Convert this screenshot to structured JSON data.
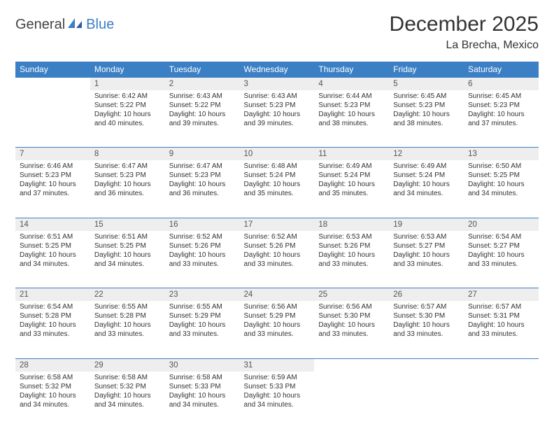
{
  "logo": {
    "part1": "General",
    "part2": "Blue"
  },
  "title": "December 2025",
  "subtitle": "La Brecha, Mexico",
  "colors": {
    "header_bg": "#3b7fc4",
    "header_text": "#ffffff",
    "daynum_bg": "#eeeeee",
    "row_border": "#3b7fc4",
    "text": "#333333"
  },
  "day_names": [
    "Sunday",
    "Monday",
    "Tuesday",
    "Wednesday",
    "Thursday",
    "Friday",
    "Saturday"
  ],
  "weeks": [
    {
      "nums": [
        "",
        "1",
        "2",
        "3",
        "4",
        "5",
        "6"
      ],
      "cells": [
        [],
        [
          "Sunrise: 6:42 AM",
          "Sunset: 5:22 PM",
          "Daylight: 10 hours",
          "and 40 minutes."
        ],
        [
          "Sunrise: 6:43 AM",
          "Sunset: 5:22 PM",
          "Daylight: 10 hours",
          "and 39 minutes."
        ],
        [
          "Sunrise: 6:43 AM",
          "Sunset: 5:23 PM",
          "Daylight: 10 hours",
          "and 39 minutes."
        ],
        [
          "Sunrise: 6:44 AM",
          "Sunset: 5:23 PM",
          "Daylight: 10 hours",
          "and 38 minutes."
        ],
        [
          "Sunrise: 6:45 AM",
          "Sunset: 5:23 PM",
          "Daylight: 10 hours",
          "and 38 minutes."
        ],
        [
          "Sunrise: 6:45 AM",
          "Sunset: 5:23 PM",
          "Daylight: 10 hours",
          "and 37 minutes."
        ]
      ]
    },
    {
      "nums": [
        "7",
        "8",
        "9",
        "10",
        "11",
        "12",
        "13"
      ],
      "cells": [
        [
          "Sunrise: 6:46 AM",
          "Sunset: 5:23 PM",
          "Daylight: 10 hours",
          "and 37 minutes."
        ],
        [
          "Sunrise: 6:47 AM",
          "Sunset: 5:23 PM",
          "Daylight: 10 hours",
          "and 36 minutes."
        ],
        [
          "Sunrise: 6:47 AM",
          "Sunset: 5:23 PM",
          "Daylight: 10 hours",
          "and 36 minutes."
        ],
        [
          "Sunrise: 6:48 AM",
          "Sunset: 5:24 PM",
          "Daylight: 10 hours",
          "and 35 minutes."
        ],
        [
          "Sunrise: 6:49 AM",
          "Sunset: 5:24 PM",
          "Daylight: 10 hours",
          "and 35 minutes."
        ],
        [
          "Sunrise: 6:49 AM",
          "Sunset: 5:24 PM",
          "Daylight: 10 hours",
          "and 34 minutes."
        ],
        [
          "Sunrise: 6:50 AM",
          "Sunset: 5:25 PM",
          "Daylight: 10 hours",
          "and 34 minutes."
        ]
      ]
    },
    {
      "nums": [
        "14",
        "15",
        "16",
        "17",
        "18",
        "19",
        "20"
      ],
      "cells": [
        [
          "Sunrise: 6:51 AM",
          "Sunset: 5:25 PM",
          "Daylight: 10 hours",
          "and 34 minutes."
        ],
        [
          "Sunrise: 6:51 AM",
          "Sunset: 5:25 PM",
          "Daylight: 10 hours",
          "and 34 minutes."
        ],
        [
          "Sunrise: 6:52 AM",
          "Sunset: 5:26 PM",
          "Daylight: 10 hours",
          "and 33 minutes."
        ],
        [
          "Sunrise: 6:52 AM",
          "Sunset: 5:26 PM",
          "Daylight: 10 hours",
          "and 33 minutes."
        ],
        [
          "Sunrise: 6:53 AM",
          "Sunset: 5:26 PM",
          "Daylight: 10 hours",
          "and 33 minutes."
        ],
        [
          "Sunrise: 6:53 AM",
          "Sunset: 5:27 PM",
          "Daylight: 10 hours",
          "and 33 minutes."
        ],
        [
          "Sunrise: 6:54 AM",
          "Sunset: 5:27 PM",
          "Daylight: 10 hours",
          "and 33 minutes."
        ]
      ]
    },
    {
      "nums": [
        "21",
        "22",
        "23",
        "24",
        "25",
        "26",
        "27"
      ],
      "cells": [
        [
          "Sunrise: 6:54 AM",
          "Sunset: 5:28 PM",
          "Daylight: 10 hours",
          "and 33 minutes."
        ],
        [
          "Sunrise: 6:55 AM",
          "Sunset: 5:28 PM",
          "Daylight: 10 hours",
          "and 33 minutes."
        ],
        [
          "Sunrise: 6:55 AM",
          "Sunset: 5:29 PM",
          "Daylight: 10 hours",
          "and 33 minutes."
        ],
        [
          "Sunrise: 6:56 AM",
          "Sunset: 5:29 PM",
          "Daylight: 10 hours",
          "and 33 minutes."
        ],
        [
          "Sunrise: 6:56 AM",
          "Sunset: 5:30 PM",
          "Daylight: 10 hours",
          "and 33 minutes."
        ],
        [
          "Sunrise: 6:57 AM",
          "Sunset: 5:30 PM",
          "Daylight: 10 hours",
          "and 33 minutes."
        ],
        [
          "Sunrise: 6:57 AM",
          "Sunset: 5:31 PM",
          "Daylight: 10 hours",
          "and 33 minutes."
        ]
      ]
    },
    {
      "nums": [
        "28",
        "29",
        "30",
        "31",
        "",
        "",
        ""
      ],
      "cells": [
        [
          "Sunrise: 6:58 AM",
          "Sunset: 5:32 PM",
          "Daylight: 10 hours",
          "and 34 minutes."
        ],
        [
          "Sunrise: 6:58 AM",
          "Sunset: 5:32 PM",
          "Daylight: 10 hours",
          "and 34 minutes."
        ],
        [
          "Sunrise: 6:58 AM",
          "Sunset: 5:33 PM",
          "Daylight: 10 hours",
          "and 34 minutes."
        ],
        [
          "Sunrise: 6:59 AM",
          "Sunset: 5:33 PM",
          "Daylight: 10 hours",
          "and 34 minutes."
        ],
        [],
        [],
        []
      ]
    }
  ]
}
